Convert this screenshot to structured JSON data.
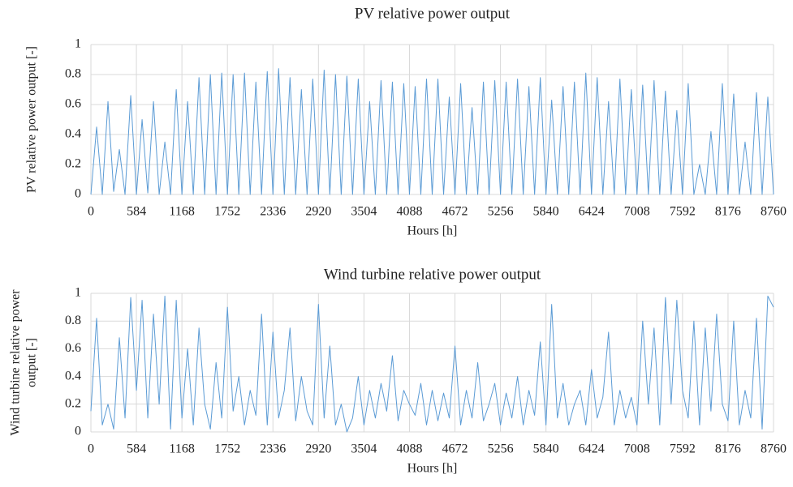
{
  "chart_data": [
    {
      "type": "line",
      "title": "PV relative power output",
      "xlabel": "Hours [h]",
      "ylabel": [
        "PV relative power output [-]"
      ],
      "x": [
        0,
        73,
        146,
        219,
        292,
        365,
        438,
        511,
        584,
        657,
        730,
        803,
        876,
        949,
        1022,
        1095,
        1168,
        1241,
        1314,
        1387,
        1460,
        1533,
        1606,
        1679,
        1752,
        1825,
        1898,
        1971,
        2044,
        2117,
        2190,
        2263,
        2336,
        2409,
        2482,
        2555,
        2628,
        2701,
        2774,
        2847,
        2920,
        2993,
        3066,
        3139,
        3212,
        3285,
        3358,
        3431,
        3504,
        3577,
        3650,
        3723,
        3796,
        3869,
        3942,
        4015,
        4088,
        4161,
        4234,
        4307,
        4380,
        4453,
        4526,
        4599,
        4672,
        4745,
        4818,
        4891,
        4964,
        5037,
        5110,
        5183,
        5256,
        5329,
        5402,
        5475,
        5548,
        5621,
        5694,
        5767,
        5840,
        5913,
        5986,
        6059,
        6132,
        6205,
        6278,
        6351,
        6424,
        6497,
        6570,
        6643,
        6716,
        6789,
        6862,
        6935,
        7008,
        7081,
        7154,
        7227,
        7300,
        7373,
        7446,
        7519,
        7592,
        7665,
        7738,
        7811,
        7884,
        7957,
        8030,
        8103,
        8176,
        8249,
        8322,
        8395,
        8468,
        8541,
        8614,
        8687,
        8760
      ],
      "values": [
        0,
        0.45,
        0,
        0.62,
        0.02,
        0.3,
        0,
        0.66,
        0,
        0.5,
        0.01,
        0.62,
        0,
        0.35,
        0,
        0.7,
        0,
        0.62,
        0,
        0.78,
        0,
        0.8,
        0,
        0.81,
        0,
        0.8,
        0,
        0.81,
        0,
        0.75,
        0,
        0.82,
        0,
        0.84,
        0,
        0.78,
        0,
        0.7,
        0,
        0.77,
        0,
        0.83,
        0,
        0.8,
        0,
        0.79,
        0,
        0.77,
        0,
        0.62,
        0,
        0.76,
        0,
        0.75,
        0,
        0.74,
        0,
        0.72,
        0,
        0.77,
        0,
        0.77,
        0,
        0.65,
        0,
        0.74,
        0,
        0.58,
        0,
        0.75,
        0,
        0.76,
        0,
        0.75,
        0,
        0.77,
        0,
        0.72,
        0,
        0.78,
        0,
        0.63,
        0,
        0.72,
        0,
        0.75,
        0,
        0.81,
        0,
        0.78,
        0,
        0.62,
        0,
        0.77,
        0,
        0.7,
        0,
        0.73,
        0,
        0.76,
        0,
        0.69,
        0,
        0.56,
        0,
        0.74,
        0,
        0.2,
        0,
        0.42,
        0,
        0.74,
        0,
        0.67,
        0,
        0.35,
        0,
        0.68,
        0,
        0.65,
        0
      ],
      "color": "#5b9bd5",
      "xlim": [
        0,
        8760
      ],
      "ylim": [
        0,
        1
      ],
      "xticks": [
        0,
        584,
        1168,
        1752,
        2336,
        2920,
        3504,
        4088,
        4672,
        5256,
        5840,
        6424,
        7008,
        7592,
        8176,
        8760
      ],
      "yticks": [
        0,
        0.2,
        0.4,
        0.6,
        0.8,
        1
      ],
      "grid": true
    },
    {
      "type": "line",
      "title": "Wind turbine relative power output",
      "xlabel": "Hours [h]",
      "ylabel": [
        "Wind turbine relative power",
        "output [-]"
      ],
      "x": [
        0,
        73,
        146,
        219,
        292,
        365,
        438,
        511,
        584,
        657,
        730,
        803,
        876,
        949,
        1022,
        1095,
        1168,
        1241,
        1314,
        1387,
        1460,
        1533,
        1606,
        1679,
        1752,
        1825,
        1898,
        1971,
        2044,
        2117,
        2190,
        2263,
        2336,
        2409,
        2482,
        2555,
        2628,
        2701,
        2774,
        2847,
        2920,
        2993,
        3066,
        3139,
        3212,
        3285,
        3358,
        3431,
        3504,
        3577,
        3650,
        3723,
        3796,
        3869,
        3942,
        4015,
        4088,
        4161,
        4234,
        4307,
        4380,
        4453,
        4526,
        4599,
        4672,
        4745,
        4818,
        4891,
        4964,
        5037,
        5110,
        5183,
        5256,
        5329,
        5402,
        5475,
        5548,
        5621,
        5694,
        5767,
        5840,
        5913,
        5986,
        6059,
        6132,
        6205,
        6278,
        6351,
        6424,
        6497,
        6570,
        6643,
        6716,
        6789,
        6862,
        6935,
        7008,
        7081,
        7154,
        7227,
        7300,
        7373,
        7446,
        7519,
        7592,
        7665,
        7738,
        7811,
        7884,
        7957,
        8030,
        8103,
        8176,
        8249,
        8322,
        8395,
        8468,
        8541,
        8614,
        8687,
        8760
      ],
      "values": [
        0.15,
        0.82,
        0.05,
        0.2,
        0.02,
        0.68,
        0.1,
        0.97,
        0.3,
        0.95,
        0.1,
        0.85,
        0.2,
        0.98,
        0.02,
        0.95,
        0.1,
        0.6,
        0.05,
        0.75,
        0.2,
        0.02,
        0.5,
        0.1,
        0.9,
        0.15,
        0.4,
        0.05,
        0.3,
        0.12,
        0.85,
        0.05,
        0.72,
        0.1,
        0.3,
        0.75,
        0.08,
        0.4,
        0.15,
        0.05,
        0.92,
        0.1,
        0.62,
        0.05,
        0.2,
        0,
        0.1,
        0.4,
        0.05,
        0.3,
        0.1,
        0.35,
        0.15,
        0.55,
        0.08,
        0.3,
        0.2,
        0.12,
        0.35,
        0.05,
        0.3,
        0.08,
        0.28,
        0.1,
        0.62,
        0.05,
        0.3,
        0.1,
        0.5,
        0.08,
        0.2,
        0.35,
        0.05,
        0.28,
        0.1,
        0.4,
        0.05,
        0.3,
        0.12,
        0.65,
        0.05,
        0.92,
        0.1,
        0.35,
        0.05,
        0.2,
        0.3,
        0.05,
        0.45,
        0.1,
        0.25,
        0.72,
        0.05,
        0.3,
        0.1,
        0.25,
        0.05,
        0.8,
        0.2,
        0.75,
        0.05,
        0.97,
        0.2,
        0.95,
        0.3,
        0.1,
        0.8,
        0.05,
        0.75,
        0.15,
        0.85,
        0.2,
        0.08,
        0.8,
        0.05,
        0.3,
        0.1,
        0.82,
        0.02,
        0.98,
        0.9
      ],
      "color": "#5b9bd5",
      "xlim": [
        0,
        8760
      ],
      "ylim": [
        0,
        1
      ],
      "xticks": [
        0,
        584,
        1168,
        1752,
        2336,
        2920,
        3504,
        4088,
        4672,
        5256,
        5840,
        6424,
        7008,
        7592,
        8176,
        8760
      ],
      "yticks": [
        0,
        0.2,
        0.4,
        0.6,
        0.8,
        1
      ],
      "grid": true
    }
  ]
}
